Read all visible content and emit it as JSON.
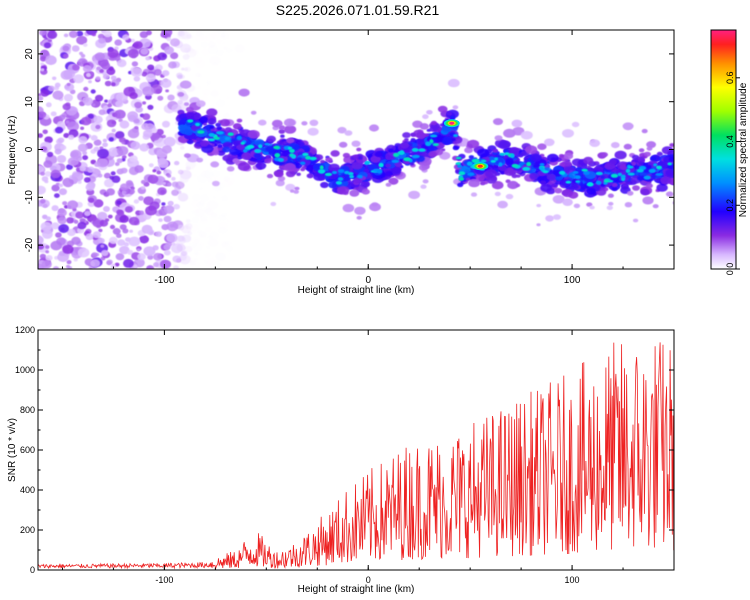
{
  "figure_title": "S225.2026.071.01.59.R21",
  "chart_data": [
    {
      "type": "heatmap",
      "title": "S225.2026.071.01.59.R21",
      "xlabel": "Height of straight line (km)",
      "ylabel": "Frequency (Hz)",
      "xlim": [
        -162,
        150
      ],
      "ylim": [
        -25,
        25
      ],
      "x_ticks": [
        -100,
        0,
        100
      ],
      "y_ticks": [
        -20,
        -10,
        0,
        10,
        20
      ],
      "colorbar": {
        "label": "Normalized spectral amplitude",
        "range": [
          0.0,
          0.75
        ],
        "ticks": [
          "0.0",
          "0.2",
          "0.4",
          "0.6"
        ]
      },
      "ridge": {
        "description": "noisy scatter for x < -85 km; coherent ridge from -85 km to 150 km",
        "x": [
          -90,
          -70,
          -50,
          -30,
          -15,
          0,
          15,
          25,
          35,
          42,
          45,
          55,
          70,
          90,
          110,
          125,
          150
        ],
        "y": [
          5,
          2,
          0,
          -2,
          -6,
          -4,
          -2,
          0,
          3,
          5,
          -5,
          -3,
          -2,
          -5,
          -6,
          -5,
          -4
        ]
      },
      "peaks": [
        {
          "x": 41,
          "y": 5.5,
          "amplitude": 0.75
        },
        {
          "x": 55,
          "y": -3.5,
          "amplitude": 0.7
        }
      ]
    },
    {
      "type": "line",
      "xlabel": "Height of straight line (km)",
      "ylabel": "SNR (10 * v/v)",
      "xlim": [
        -162,
        150
      ],
      "ylim": [
        0,
        1200
      ],
      "x_ticks": [
        -100,
        0,
        100
      ],
      "y_ticks": [
        0,
        200,
        400,
        600,
        800,
        1000,
        1200
      ],
      "series": [
        {
          "name": "SNR",
          "color": "#ee2222",
          "envelope_x": [
            -162,
            -100,
            -80,
            -65,
            -58,
            -55,
            -45,
            -35,
            -20,
            -10,
            0,
            20,
            40,
            60,
            80,
            100,
            120,
            140,
            150
          ],
          "envelope_y": [
            30,
            40,
            50,
            100,
            190,
            200,
            100,
            150,
            300,
            420,
            500,
            650,
            700,
            800,
            900,
            1000,
            1150,
            1200,
            1150
          ]
        }
      ]
    }
  ]
}
